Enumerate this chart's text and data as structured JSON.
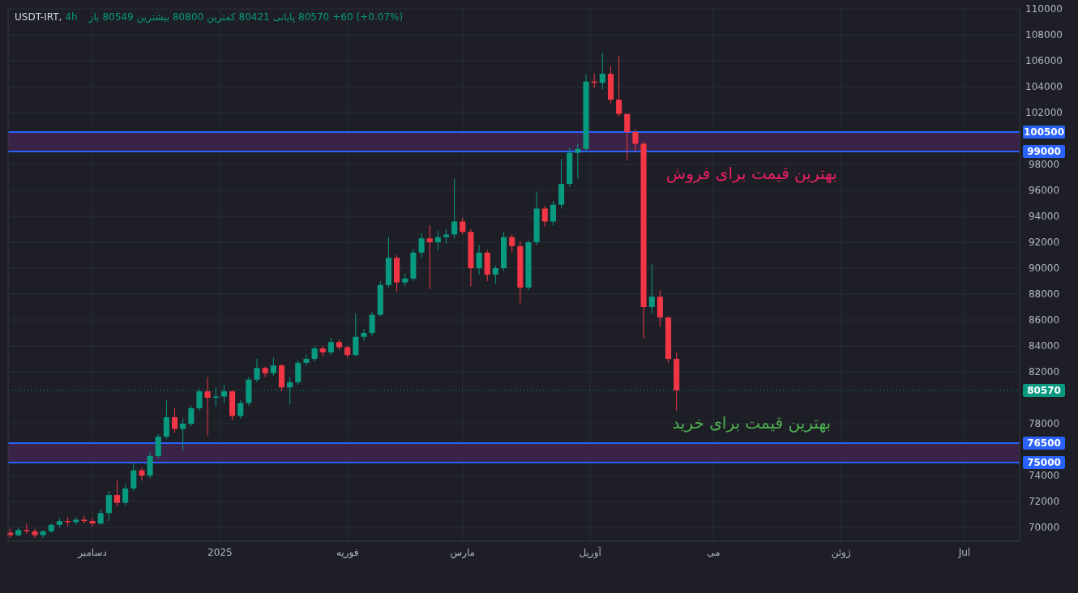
{
  "chart_data": {
    "type": "candlestick",
    "annotations": [
      "USDT-IRT, 4h",
      "باز 80549 بیشترین 80800 کمترین 80421 پایانی 80570 +60 (+0.07%)"
    ],
    "x": [
      "2024-11-11",
      "2024-11-13",
      "2024-11-15",
      "2024-11-17",
      "2024-11-19",
      "2024-11-21",
      "2024-11-23",
      "2024-11-25",
      "2024-11-27",
      "2024-11-29",
      "2024-12-01",
      "2024-12-03",
      "2024-12-05",
      "2024-12-07",
      "2024-12-09",
      "2024-12-11",
      "2024-12-13",
      "2024-12-15",
      "2024-12-17",
      "2024-12-19",
      "2024-12-21",
      "2024-12-23",
      "2024-12-25",
      "2024-12-27",
      "2024-12-29",
      "2024-12-31",
      "2025-01-02",
      "2025-01-04",
      "2025-01-06",
      "2025-01-08",
      "2025-01-10",
      "2025-01-12",
      "2025-01-14",
      "2025-01-16",
      "2025-01-18",
      "2025-01-20",
      "2025-01-22",
      "2025-01-24",
      "2025-01-26",
      "2025-01-28",
      "2025-01-30",
      "2025-02-01",
      "2025-02-03",
      "2025-02-05",
      "2025-02-07",
      "2025-02-09",
      "2025-02-11",
      "2025-02-13",
      "2025-02-15",
      "2025-02-17",
      "2025-02-19",
      "2025-02-21",
      "2025-02-23",
      "2025-02-25",
      "2025-02-27",
      "2025-03-01",
      "2025-03-03",
      "2025-03-05",
      "2025-03-07",
      "2025-03-09",
      "2025-03-11",
      "2025-03-13",
      "2025-03-15",
      "2025-03-17",
      "2025-03-19",
      "2025-03-21",
      "2025-03-23",
      "2025-03-25",
      "2025-03-27",
      "2025-03-29",
      "2025-03-31",
      "2025-04-02",
      "2025-04-04",
      "2025-04-06",
      "2025-04-08",
      "2025-04-10",
      "2025-04-12",
      "2025-04-14",
      "2025-04-16",
      "2025-04-18",
      "2025-04-20",
      "2025-04-22"
    ],
    "ohlc": [
      [
        69600,
        69900,
        69200,
        69400
      ],
      [
        69400,
        70000,
        69300,
        69800
      ],
      [
        69800,
        70300,
        69500,
        69700
      ],
      [
        69700,
        69900,
        69200,
        69400
      ],
      [
        69400,
        69800,
        69200,
        69700
      ],
      [
        69700,
        70300,
        69600,
        70200
      ],
      [
        70200,
        70700,
        70000,
        70500
      ],
      [
        70500,
        70800,
        70100,
        70400
      ],
      [
        70400,
        70800,
        70200,
        70600
      ],
      [
        70600,
        70900,
        70300,
        70500
      ],
      [
        70500,
        70700,
        70100,
        70300
      ],
      [
        70300,
        71400,
        70200,
        71100
      ],
      [
        71100,
        72800,
        70500,
        72500
      ],
      [
        72500,
        73600,
        71600,
        71900
      ],
      [
        71900,
        73300,
        71700,
        73000
      ],
      [
        73000,
        75000,
        72800,
        74400
      ],
      [
        74400,
        74600,
        73600,
        74000
      ],
      [
        74000,
        75800,
        73800,
        75500
      ],
      [
        75500,
        77200,
        75300,
        77000
      ],
      [
        77000,
        79800,
        76800,
        78500
      ],
      [
        78500,
        79200,
        77300,
        77600
      ],
      [
        77600,
        78400,
        75900,
        78000
      ],
      [
        78000,
        79400,
        77800,
        79200
      ],
      [
        79200,
        80700,
        79000,
        80500
      ],
      [
        80500,
        81600,
        77100,
        80000
      ],
      [
        80000,
        80800,
        79300,
        80100
      ],
      [
        80100,
        81000,
        79600,
        80500
      ],
      [
        80500,
        80600,
        78300,
        78600
      ],
      [
        78600,
        79800,
        78400,
        79600
      ],
      [
        79600,
        81600,
        79400,
        81400
      ],
      [
        81400,
        83000,
        81200,
        82300
      ],
      [
        82300,
        82400,
        81600,
        81900
      ],
      [
        81900,
        83100,
        81700,
        82500
      ],
      [
        82500,
        82600,
        80500,
        80800
      ],
      [
        80800,
        81600,
        79500,
        81200
      ],
      [
        81200,
        82900,
        81000,
        82700
      ],
      [
        82700,
        83300,
        82500,
        83000
      ],
      [
        83000,
        84000,
        82800,
        83800
      ],
      [
        83800,
        84000,
        83200,
        83500
      ],
      [
        83500,
        84600,
        83300,
        84300
      ],
      [
        84300,
        84500,
        83700,
        83900
      ],
      [
        83900,
        84000,
        83100,
        83300
      ],
      [
        83300,
        86500,
        83200,
        84700
      ],
      [
        84700,
        85300,
        84400,
        85000
      ],
      [
        85000,
        86600,
        84800,
        86400
      ],
      [
        86400,
        89000,
        86300,
        88700
      ],
      [
        88700,
        92400,
        88500,
        90800
      ],
      [
        90800,
        91000,
        88200,
        88900
      ],
      [
        88900,
        89600,
        88600,
        89200
      ],
      [
        89200,
        91500,
        89000,
        91200
      ],
      [
        91200,
        92700,
        90800,
        92300
      ],
      [
        92300,
        93300,
        88400,
        92000
      ],
      [
        92000,
        92900,
        91400,
        92400
      ],
      [
        92400,
        93000,
        91900,
        92600
      ],
      [
        92600,
        96900,
        92300,
        93600
      ],
      [
        93600,
        93900,
        92600,
        92800
      ],
      [
        92800,
        93000,
        88600,
        90000
      ],
      [
        90000,
        91800,
        89500,
        91200
      ],
      [
        91200,
        91400,
        89000,
        89500
      ],
      [
        89500,
        90200,
        88800,
        90000
      ],
      [
        90000,
        92800,
        89800,
        92400
      ],
      [
        92400,
        92600,
        91200,
        91700
      ],
      [
        91700,
        92100,
        87300,
        88500
      ],
      [
        88500,
        92200,
        88300,
        92000
      ],
      [
        92000,
        95900,
        91800,
        94600
      ],
      [
        94600,
        94800,
        93200,
        93600
      ],
      [
        93600,
        95200,
        93300,
        94900
      ],
      [
        94900,
        98400,
        94600,
        96500
      ],
      [
        96500,
        99300,
        96300,
        98900
      ],
      [
        98900,
        99600,
        96900,
        99200
      ],
      [
        99200,
        105000,
        99000,
        104400
      ],
      [
        104400,
        105000,
        103900,
        104300
      ],
      [
        104300,
        106600,
        103800,
        105000
      ],
      [
        105000,
        105600,
        102700,
        103000
      ],
      [
        103000,
        106400,
        101700,
        101900
      ],
      [
        101900,
        101900,
        98300,
        100500
      ],
      [
        100500,
        100700,
        99000,
        99600
      ],
      [
        99600,
        99800,
        84600,
        87000
      ],
      [
        87000,
        90300,
        86500,
        87800
      ],
      [
        87800,
        88300,
        85500,
        86200
      ],
      [
        86200,
        86300,
        82700,
        83000
      ],
      [
        83000,
        83500,
        79000,
        80570
      ]
    ],
    "xlim": [
      "2024-11-10T12:00",
      "2025-07-14T10:00"
    ],
    "xticks": [
      {
        "value": "2024-12-01",
        "label": "دسامبر"
      },
      {
        "value": "2025-01-01",
        "label": "2025"
      },
      {
        "value": "2025-02-01",
        "label": "فوریه"
      },
      {
        "value": "2025-03-01",
        "label": "مارس"
      },
      {
        "value": "2025-04-01",
        "label": "آوریل"
      },
      {
        "value": "2025-05-01",
        "label": "می"
      },
      {
        "value": "2025-06-01",
        "label": "ژوئن"
      },
      {
        "value": "2025-07-01",
        "label": "Jul"
      }
    ],
    "ylim": [
      68940,
      110190
    ],
    "yticks": [
      70000,
      72000,
      74000,
      78000,
      82000,
      84000,
      86000,
      88000,
      90000,
      92000,
      94000,
      96000,
      98000,
      102000,
      104000,
      106000,
      108000,
      110000
    ],
    "grid": true,
    "bands": [
      {
        "axis": "y",
        "from": 99000,
        "to": 100500,
        "color": "#3a2347",
        "label": "بهترین قیمت برای فروش"
      },
      {
        "axis": "y",
        "from": 75000,
        "to": 76500,
        "color": "#3a2347",
        "label": "بهترین قیمت برای خرید"
      }
    ],
    "ref_lines": [
      {
        "axis": "y",
        "value": 100500,
        "label": "100500",
        "color": "#2962ff"
      },
      {
        "axis": "y",
        "value": 99000,
        "label": "99000",
        "color": "#2962ff"
      },
      {
        "axis": "y",
        "value": 76500,
        "label": "76500",
        "color": "#2962ff"
      },
      {
        "axis": "y",
        "value": 75000,
        "label": "75000",
        "color": "#2962ff"
      },
      {
        "axis": "y",
        "value": 80570,
        "label": "80570",
        "color": "#089981",
        "line_style": "dotted"
      }
    ]
  }
}
